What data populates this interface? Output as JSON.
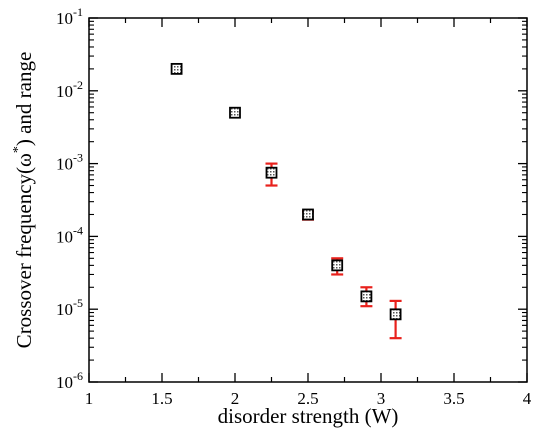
{
  "chart_data": {
    "type": "scatter",
    "title": "",
    "xlabel": "disorder strength (W)",
    "ylabel_prefix": "Crossover frequency(ω",
    "ylabel_sup": "*",
    "ylabel_suffix": ") and range",
    "xlim": [
      1,
      4
    ],
    "ylim": [
      1e-06,
      0.1
    ],
    "y_scale": "log",
    "grid": false,
    "x_ticks": [
      1,
      1.5,
      2,
      2.5,
      3,
      3.5,
      4
    ],
    "x_tick_labels": [
      "1",
      "1.5",
      "2",
      "2.5",
      "3",
      "3.5",
      "4"
    ],
    "y_ticks": [
      {
        "base": "10",
        "exp": "-6",
        "value": 1e-06
      },
      {
        "base": "10",
        "exp": "-5",
        "value": 1e-05
      },
      {
        "base": "10",
        "exp": "-4",
        "value": 0.0001
      },
      {
        "base": "10",
        "exp": "-3",
        "value": 0.001
      },
      {
        "base": "10",
        "exp": "-2",
        "value": 0.01
      },
      {
        "base": "10",
        "exp": "-1",
        "value": 0.1
      }
    ],
    "series": [
      {
        "marker": "square-dotted",
        "marker_color": "#000000",
        "errorbar_color": "#e8211c",
        "points": [
          {
            "x": 1.6,
            "y": 0.02,
            "err_low": 0.02,
            "err_high": 0.02
          },
          {
            "x": 2.0,
            "y": 0.005,
            "err_low": 0.005,
            "err_high": 0.005
          },
          {
            "x": 2.25,
            "y": 0.00075,
            "err_low": 0.0005,
            "err_high": 0.001
          },
          {
            "x": 2.5,
            "y": 0.0002,
            "err_low": 0.00017,
            "err_high": 0.00022
          },
          {
            "x": 2.7,
            "y": 4e-05,
            "err_low": 3e-05,
            "err_high": 5e-05
          },
          {
            "x": 2.9,
            "y": 1.5e-05,
            "err_low": 1.1e-05,
            "err_high": 2e-05
          },
          {
            "x": 3.1,
            "y": 8.5e-06,
            "err_low": 4e-06,
            "err_high": 1.3e-05
          }
        ]
      }
    ]
  }
}
